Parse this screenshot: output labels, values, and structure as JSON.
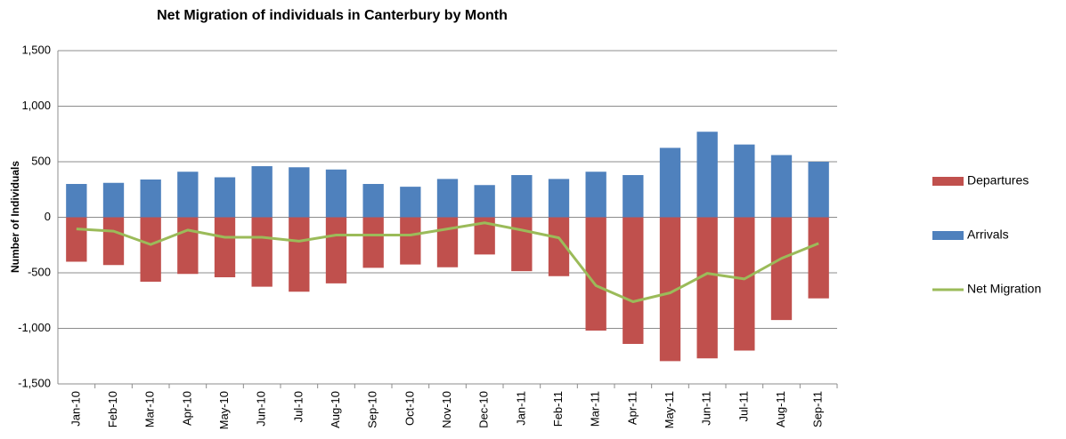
{
  "chart_data": {
    "type": "bar-line",
    "title": "Net Migration of individuals in Canterbury by Month",
    "y_label": "Number of Individuals",
    "categories": [
      "Jan-10",
      "Feb-10",
      "Mar-10",
      "Apr-10",
      "May-10",
      "Jun-10",
      "Jul-10",
      "Aug-10",
      "Sep-10",
      "Oct-10",
      "Nov-10",
      "Dec-10",
      "Jan-11",
      "Feb-11",
      "Mar-11",
      "Apr-11",
      "May-11",
      "Jun-11",
      "Jul-11",
      "Aug-11",
      "Sep-11"
    ],
    "series": [
      {
        "name": "Departures",
        "color": "#c0504d",
        "kind": "bar",
        "values": [
          -400,
          -430,
          -580,
          -510,
          -540,
          -625,
          -670,
          -595,
          -455,
          -425,
          -450,
          -335,
          -485,
          -530,
          -1020,
          -1140,
          -1295,
          -1270,
          -1200,
          -925,
          -730
        ]
      },
      {
        "name": "Arrivals",
        "color": "#4f81bd",
        "kind": "bar",
        "values": [
          300,
          310,
          340,
          410,
          360,
          460,
          450,
          430,
          300,
          275,
          345,
          290,
          380,
          345,
          410,
          380,
          625,
          770,
          655,
          560,
          500
        ]
      },
      {
        "name": "Net Migration",
        "color": "#9bbb59",
        "kind": "line",
        "values": [
          -105,
          -125,
          -245,
          -115,
          -180,
          -180,
          -215,
          -160,
          -160,
          -160,
          -105,
          -50,
          -115,
          -185,
          -615,
          -760,
          -680,
          -505,
          -555,
          -370,
          -235
        ]
      }
    ],
    "ylim": [
      -1500,
      1500
    ],
    "yticks": [
      {
        "value": -1500,
        "label": "-1,500",
        "color": "#ff0000"
      },
      {
        "value": -1000,
        "label": "-1,000",
        "color": "#ff0000"
      },
      -500,
      0,
      500,
      {
        "value": 1000,
        "label": "1,000"
      },
      {
        "value": 1500,
        "label": "1,500"
      }
    ],
    "grid": true,
    "legend": "right"
  }
}
